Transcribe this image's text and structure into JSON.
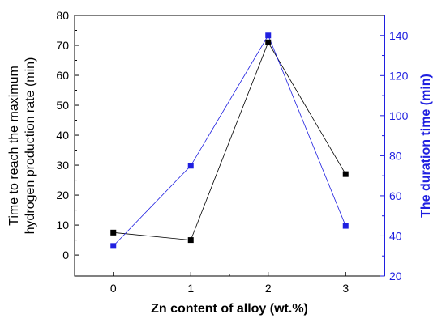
{
  "chart_data": {
    "type": "line",
    "xlabel": "Zn content of alloy (wt.%)",
    "ylabel_left_line1": "Time to reach the maximum",
    "ylabel_left_line2": "hydrogen production rate (min)",
    "ylabel_right": "The duration time (min)",
    "x": [
      0,
      1,
      2,
      3
    ],
    "xlim": [
      -0.5,
      3.5
    ],
    "ylim_left": [
      -7,
      80
    ],
    "ylim_right": [
      20,
      150
    ],
    "xticks": [
      "0",
      "1",
      "2",
      "3"
    ],
    "yticks_left": [
      "0",
      "10",
      "20",
      "30",
      "40",
      "50",
      "60",
      "70",
      "80"
    ],
    "yticks_right": [
      "20",
      "40",
      "60",
      "80",
      "100",
      "120",
      "140"
    ],
    "series": [
      {
        "axis": "left",
        "color": "#000000",
        "marker": "square",
        "values": [
          7.5,
          5,
          71,
          27
        ]
      },
      {
        "axis": "right",
        "color": "#1f1fe0",
        "marker": "square",
        "values": [
          35,
          75,
          140,
          45
        ]
      }
    ],
    "right_axis_color": "#1f1fe0",
    "grid": false,
    "legend": "none"
  }
}
